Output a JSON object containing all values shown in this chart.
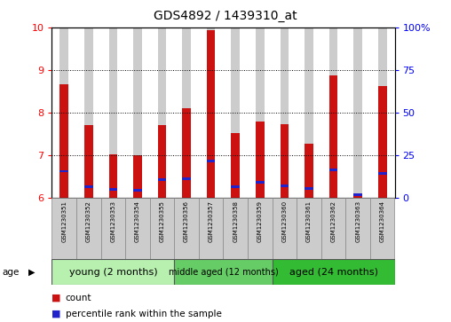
{
  "title": "GDS4892 / 1439310_at",
  "samples": [
    "GSM1230351",
    "GSM1230352",
    "GSM1230353",
    "GSM1230354",
    "GSM1230355",
    "GSM1230356",
    "GSM1230357",
    "GSM1230358",
    "GSM1230359",
    "GSM1230360",
    "GSM1230361",
    "GSM1230362",
    "GSM1230363",
    "GSM1230364"
  ],
  "count_values": [
    8.67,
    7.72,
    7.02,
    7.0,
    7.7,
    8.11,
    9.93,
    7.52,
    7.79,
    7.73,
    7.27,
    8.88,
    6.1,
    8.62
  ],
  "percentile_values": [
    6.63,
    6.27,
    6.21,
    6.18,
    6.43,
    6.46,
    6.87,
    6.27,
    6.37,
    6.28,
    6.22,
    6.66,
    6.08,
    6.57
  ],
  "ylim_left": [
    6,
    10
  ],
  "yticks_left": [
    6,
    7,
    8,
    9,
    10
  ],
  "yticks_right": [
    0,
    25,
    50,
    75,
    100
  ],
  "ytick_labels_right": [
    "0",
    "25",
    "50",
    "75",
    "100%"
  ],
  "bar_width": 0.35,
  "count_color": "#cc1111",
  "percentile_color": "#2222cc",
  "background_color": "#ffffff",
  "bar_bg_color": "#cccccc",
  "base": 6.0,
  "groups": [
    {
      "label": "young (2 months)",
      "start": 0,
      "end": 5,
      "color": "#b8f0b0"
    },
    {
      "label": "middle aged (12 months)",
      "start": 5,
      "end": 9,
      "color": "#66cc66"
    },
    {
      "label": "aged (24 months)",
      "start": 9,
      "end": 14,
      "color": "#33bb33"
    }
  ],
  "age_label": "age",
  "legend_count": "count",
  "legend_percentile": "percentile rank within the sample"
}
